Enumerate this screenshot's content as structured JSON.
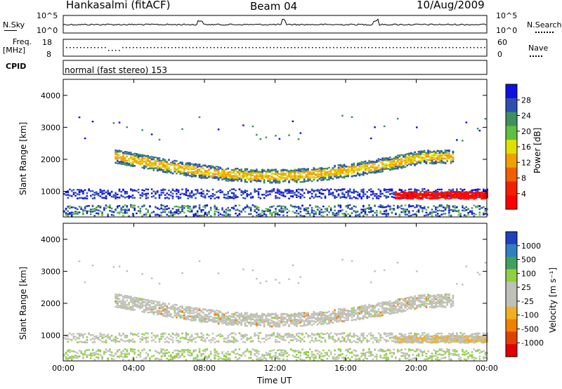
{
  "header": {
    "station": "Hankasalmi (fitACF)",
    "beam": "Beam 04",
    "date": "10/Aug/2009"
  },
  "strip_noise": {
    "left_label": "N.Sky",
    "right_label": "N.Search",
    "left_ticks": [
      "10^5",
      "10^0"
    ],
    "right_ticks": [
      "10^5",
      "10^0"
    ]
  },
  "strip_freq": {
    "left_label_1": "Freq.",
    "left_label_2": "[MHz]",
    "right_label": "Nave",
    "left_ticks": [
      "18",
      "8"
    ],
    "right_ticks": [
      "60",
      "0"
    ]
  },
  "strip_cpid": {
    "label": "CPID",
    "text": "normal (fast stereo) 153"
  },
  "colors": {
    "power_scale": [
      "#1010e0",
      "#2f4fb0",
      "#3f8f5f",
      "#5fbf3f",
      "#e0e000",
      "#f0a000",
      "#f06000",
      "#f02000",
      "#ff0000"
    ],
    "velocity_scale": [
      "#2040c0",
      "#3080c0",
      "#40a060",
      "#90d040",
      "#c0c0b8",
      "#c0c0b8",
      "#f0b020",
      "#f08000",
      "#e04000",
      "#e00000"
    ]
  },
  "chart_data": [
    {
      "type": "heatmap",
      "name": "power",
      "ylabel": "Slant Range [km]",
      "xlabel": "Time UT",
      "x_ticks": [
        "00:00",
        "04:00",
        "08:00",
        "12:00",
        "16:00",
        "20:00",
        "00:00"
      ],
      "y_ticks": [
        "1000",
        "2000",
        "3000",
        "4000"
      ],
      "ylim": [
        200,
        4500
      ],
      "colorbar": {
        "label": "Power [dB]",
        "ticks": [
          "4",
          "8",
          "12",
          "16",
          "20",
          "24",
          "28"
        ],
        "range": [
          0,
          30
        ]
      }
    },
    {
      "type": "heatmap",
      "name": "velocity",
      "ylabel": "Slant Range [km]",
      "xlabel": "Time UT",
      "x_ticks": [
        "00:00",
        "04:00",
        "08:00",
        "12:00",
        "16:00",
        "20:00",
        "00:00"
      ],
      "y_ticks": [
        "1000",
        "2000",
        "3000",
        "4000"
      ],
      "ylim": [
        200,
        4500
      ],
      "colorbar": {
        "label": "Velocity [m s⁻¹]",
        "ticks": [
          "1000",
          "500",
          "100",
          "25",
          "-25",
          "-100",
          "-500",
          "-1000"
        ]
      }
    }
  ]
}
